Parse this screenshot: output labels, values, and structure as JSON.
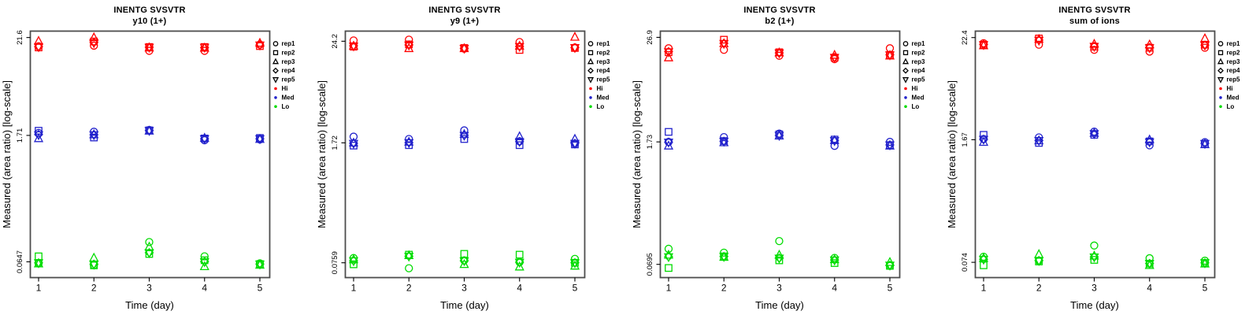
{
  "page": {
    "background": "#ffffff"
  },
  "legend": {
    "reps": [
      {
        "label": "rep1",
        "marker": "circle"
      },
      {
        "label": "rep2",
        "marker": "square"
      },
      {
        "label": "rep3",
        "marker": "triangle-up"
      },
      {
        "label": "rep4",
        "marker": "diamond"
      },
      {
        "label": "rep5",
        "marker": "triangle-down"
      }
    ],
    "levels": [
      {
        "label": "Hi",
        "color": "#FF0000"
      },
      {
        "label": "Med",
        "color": "#2222CC"
      },
      {
        "label": "Lo",
        "color": "#00DC00"
      }
    ]
  },
  "chart_data": [
    {
      "type": "scatter",
      "title": "INENTG SVSVTR",
      "subtitle": "y10 (1+)",
      "xlabel": "Time (day)",
      "ylabel": "Measured (area ratio) [log-scale]",
      "x_days": [
        1,
        2,
        3,
        4,
        5
      ],
      "yscale": "log",
      "grid": false,
      "ylim": [
        0.043,
        25.5
      ],
      "yticks": [
        {
          "value": 21.6,
          "label": "21.6"
        },
        {
          "value": 1.71,
          "label": "1.71"
        },
        {
          "value": 0.0647,
          "label": "0.0647"
        }
      ],
      "series": [
        {
          "name": "Hi",
          "color": "#FF0000",
          "reps": {
            "rep1": [
              17.2,
              17.5,
              15.3,
              15.3,
              18.0
            ],
            "rep2": [
              16.7,
              19.5,
              16.9,
              16.9,
              17.3
            ],
            "rep3": [
              19.7,
              21.6,
              16.6,
              16.5,
              18.7
            ],
            "rep4": [
              17.0,
              19.0,
              16.8,
              16.6,
              17.8
            ],
            "rep5": [
              16.9,
              18.8,
              16.7,
              16.7,
              17.7
            ]
          }
        },
        {
          "name": "Med",
          "color": "#2222CC",
          "reps": {
            "rep1": [
              1.82,
              1.88,
              1.97,
              1.51,
              1.54
            ],
            "rep2": [
              1.93,
              1.62,
              1.95,
              1.58,
              1.6
            ],
            "rep3": [
              1.58,
              1.75,
              1.92,
              1.6,
              1.55
            ],
            "rep4": [
              1.75,
              1.74,
              1.94,
              1.57,
              1.57
            ],
            "rep5": [
              1.73,
              1.73,
              1.93,
              1.56,
              1.56
            ]
          }
        },
        {
          "name": "Lo",
          "color": "#00DC00",
          "reps": {
            "rep1": [
              0.0622,
              0.0593,
              0.108,
              0.0746,
              0.0622
            ],
            "rep2": [
              0.0746,
              0.059,
              0.0793,
              0.0674,
              0.061
            ],
            "rep3": [
              0.0616,
              0.0716,
              0.0953,
              0.0574,
              0.0597
            ],
            "rep4": [
              0.063,
              0.061,
              0.082,
              0.065,
              0.061
            ],
            "rep5": [
              0.0628,
              0.0605,
              0.0815,
              0.0645,
              0.0608
            ]
          }
        }
      ]
    },
    {
      "type": "scatter",
      "title": "INENTG SVSVTR",
      "subtitle": "y9 (1+)",
      "xlabel": "Time (day)",
      "ylabel": "Measured (area ratio) [log-scale]",
      "x_days": [
        1,
        2,
        3,
        4,
        5
      ],
      "yscale": "log",
      "grid": false,
      "ylim": [
        0.0516,
        31.5
      ],
      "yticks": [
        {
          "value": 24.2,
          "label": "24.2"
        },
        {
          "value": 1.72,
          "label": "1.72"
        },
        {
          "value": 0.0759,
          "label": "0.0759"
        }
      ],
      "series": [
        {
          "name": "Hi",
          "color": "#FF0000",
          "reps": {
            "rep1": [
              24.7,
              25.2,
              19.9,
              23.7,
              20.6
            ],
            "rep2": [
              21.0,
              22.3,
              20.3,
              19.3,
              20.3
            ],
            "rep3": [
              21.4,
              20.1,
              20.1,
              21.4,
              27.0
            ],
            "rep4": [
              21.5,
              22.0,
              20.1,
              21.2,
              20.5
            ],
            "rep5": [
              21.3,
              21.8,
              20.0,
              21.0,
              20.4
            ]
          }
        },
        {
          "name": "Med",
          "color": "#2222CC",
          "reps": {
            "rep1": [
              2.02,
              1.9,
              2.38,
              1.79,
              1.68
            ],
            "rep2": [
              1.6,
              1.62,
              1.9,
              1.62,
              1.65
            ],
            "rep3": [
              1.72,
              1.76,
              2.15,
              2.03,
              1.9
            ],
            "rep4": [
              1.7,
              1.73,
              2.1,
              1.78,
              1.7
            ],
            "rep5": [
              1.69,
              1.72,
              2.08,
              1.77,
              1.69
            ]
          }
        },
        {
          "name": "Lo",
          "color": "#00DC00",
          "reps": {
            "rep1": [
              0.0858,
              0.0658,
              0.0808,
              0.0772,
              0.084
            ],
            "rep2": [
              0.0729,
              0.0937,
              0.0957,
              0.0937,
              0.0759
            ],
            "rep3": [
              0.0825,
              0.0918,
              0.0729,
              0.0683,
              0.0699
            ],
            "rep4": [
              0.08,
              0.09,
              0.08,
              0.077,
              0.076
            ],
            "rep5": [
              0.0795,
              0.0895,
              0.0795,
              0.0765,
              0.0755
            ]
          }
        }
      ]
    },
    {
      "type": "scatter",
      "title": "INENTG SVSVTR",
      "subtitle": "b2 (1+)",
      "xlabel": "Time (day)",
      "ylabel": "Measured (area ratio) [log-scale]",
      "x_days": [
        1,
        2,
        3,
        4,
        5
      ],
      "yscale": "log",
      "grid": false,
      "ylim": [
        0.0491,
        31.7
      ],
      "yticks": [
        {
          "value": 26.9,
          "label": "26.9"
        },
        {
          "value": 1.73,
          "label": "1.73"
        },
        {
          "value": 0.0695,
          "label": "0.0695"
        }
      ],
      "series": [
        {
          "name": "Hi",
          "color": "#FF0000",
          "reps": {
            "rep1": [
              20.2,
              19.4,
              16.6,
              15.2,
              20.2
            ],
            "rep2": [
              18.2,
              25.3,
              18.2,
              15.8,
              16.9
            ],
            "rep3": [
              15.8,
              22.9,
              18.0,
              16.9,
              16.6
            ],
            "rep4": [
              18.5,
              23.0,
              17.9,
              15.9,
              17.0
            ],
            "rep5": [
              18.3,
              22.8,
              17.8,
              15.8,
              16.9
            ]
          }
        },
        {
          "name": "Med",
          "color": "#2222CC",
          "reps": {
            "rep1": [
              1.73,
              1.96,
              2.15,
              1.56,
              1.73
            ],
            "rep2": [
              2.25,
              1.77,
              2.11,
              1.84,
              1.59
            ],
            "rep3": [
              1.56,
              1.7,
              2.03,
              1.8,
              1.56
            ],
            "rep4": [
              1.72,
              1.76,
              2.05,
              1.79,
              1.6
            ],
            "rep5": [
              1.71,
              1.75,
              2.04,
              1.78,
              1.59
            ]
          }
        },
        {
          "name": "Lo",
          "color": "#00DC00",
          "reps": {
            "rep1": [
              0.1045,
              0.0944,
              0.128,
              0.0823,
              0.0668
            ],
            "rep2": [
              0.0632,
              0.0857,
              0.0772,
              0.0719,
              0.0668
            ],
            "rep3": [
              0.0889,
              0.084,
              0.0889,
              0.079,
              0.0735
            ],
            "rep4": [
              0.085,
              0.0855,
              0.082,
              0.078,
              0.068
            ],
            "rep5": [
              0.0845,
              0.085,
              0.0815,
              0.0775,
              0.0678
            ]
          }
        }
      ]
    },
    {
      "type": "scatter",
      "title": "INENTG SVSVTR",
      "subtitle": "sum of ions",
      "xlabel": "Time (day)",
      "ylabel": "Measured (area ratio) [log-scale]",
      "x_days": [
        1,
        2,
        3,
        4,
        5
      ],
      "yscale": "log",
      "grid": false,
      "ylim": [
        0.0502,
        26.4
      ],
      "yticks": [
        {
          "value": 22.4,
          "label": "22.4"
        },
        {
          "value": 1.67,
          "label": "1.67"
        },
        {
          "value": 0.074,
          "label": "0.074"
        }
      ],
      "series": [
        {
          "name": "Hi",
          "color": "#FF0000",
          "reps": {
            "rep1": [
              19.4,
              18.7,
              16.4,
              15.7,
              17.3
            ],
            "rep2": [
              18.7,
              21.9,
              17.8,
              17.3,
              18.7
            ],
            "rep3": [
              18.3,
              21.5,
              19.0,
              18.7,
              21.9
            ],
            "rep4": [
              18.8,
              21.0,
              17.9,
              17.4,
              18.5
            ],
            "rep5": [
              18.6,
              20.8,
              17.8,
              17.2,
              18.4
            ]
          }
        },
        {
          "name": "Med",
          "color": "#2222CC",
          "reps": {
            "rep1": [
              1.7,
              1.77,
              2.05,
              1.45,
              1.57
            ],
            "rep2": [
              1.89,
              1.54,
              1.89,
              1.6,
              1.5
            ],
            "rep3": [
              1.57,
              1.63,
              1.97,
              1.67,
              1.48
            ],
            "rep4": [
              1.69,
              1.64,
              1.95,
              1.58,
              1.52
            ],
            "rep5": [
              1.68,
              1.63,
              1.94,
              1.57,
              1.51
            ]
          }
        },
        {
          "name": "Lo",
          "color": "#00DC00",
          "reps": {
            "rep1": [
              0.0853,
              0.0771,
              0.1134,
              0.0821,
              0.0771
            ],
            "rep2": [
              0.0686,
              0.0756,
              0.0787,
              0.0715,
              0.0727
            ],
            "rep3": [
              0.0821,
              0.0907,
              0.0873,
              0.0686,
              0.0713
            ],
            "rep4": [
              0.08,
              0.0775,
              0.085,
              0.072,
              0.073
            ],
            "rep5": [
              0.0795,
              0.077,
              0.0845,
              0.0718,
              0.0728
            ]
          }
        }
      ]
    }
  ]
}
